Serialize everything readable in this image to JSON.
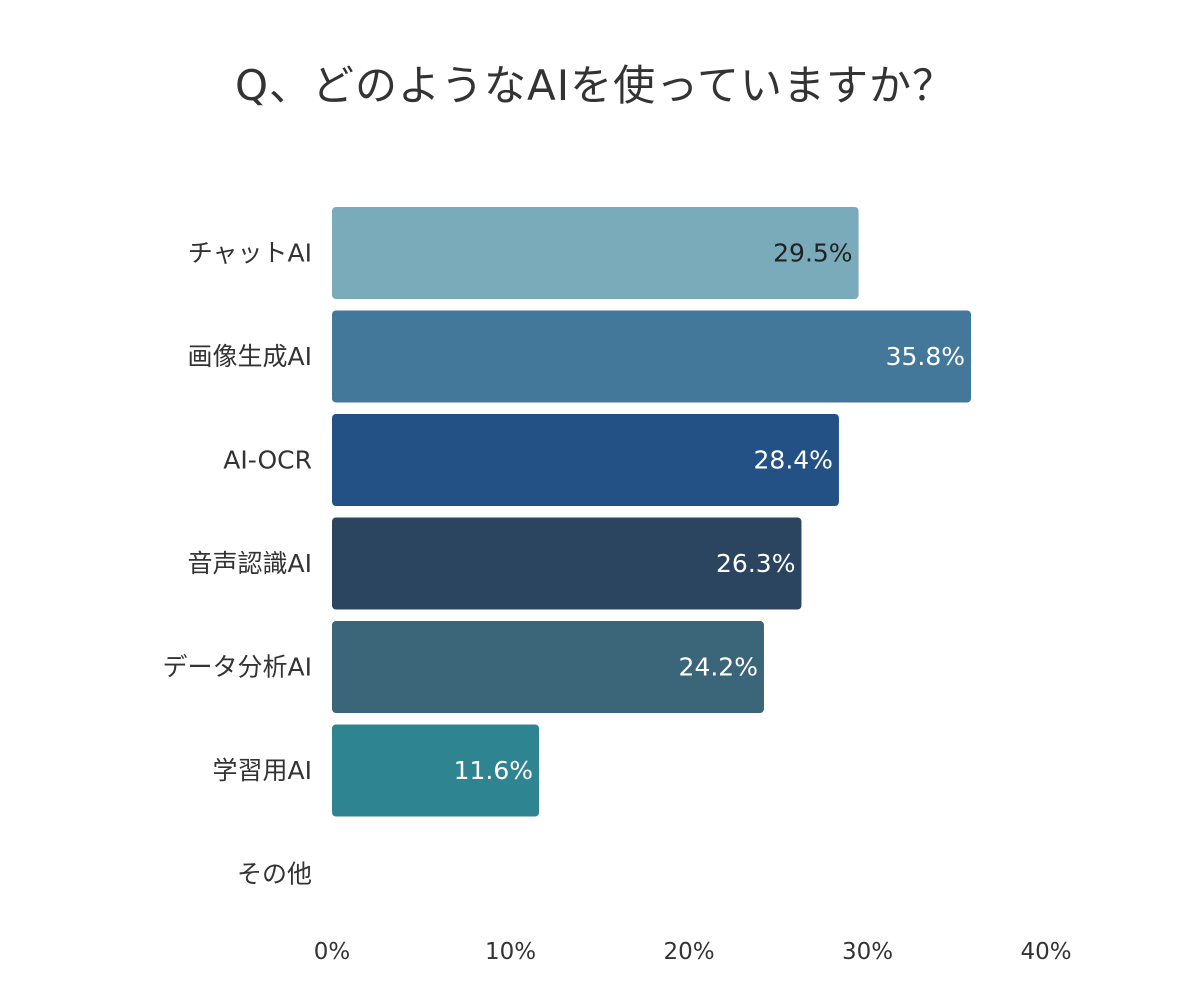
{
  "chart_data": {
    "type": "bar",
    "orientation": "horizontal",
    "title": "Q、どのようなAIを使っていますか？",
    "xlabel": "",
    "ylabel": "",
    "categories": [
      "チャットAI",
      "画像生成AI",
      "AI-OCR",
      "音声認識AI",
      "データ分析AI",
      "学習用AI",
      "その他"
    ],
    "values": [
      29.5,
      35.8,
      28.4,
      26.3,
      24.2,
      11.6,
      null
    ],
    "value_labels": [
      "29.5%",
      "35.8%",
      "28.4%",
      "26.3%",
      "24.2%",
      "11.6%",
      ""
    ],
    "colors": [
      "#7aabba",
      "#44789a",
      "#235185",
      "#2b4560",
      "#3b6679",
      "#2f8492",
      "#cccccc"
    ],
    "label_colors": [
      "#222222",
      "#ffffff",
      "#ffffff",
      "#ffffff",
      "#ffffff",
      "#ffffff",
      "#ffffff"
    ],
    "xlim": [
      0,
      40
    ],
    "x_ticks": [
      0,
      10,
      20,
      30,
      40
    ],
    "x_tick_labels": [
      "0%",
      "10%",
      "20%",
      "30%",
      "40%"
    ],
    "grid": false,
    "legend": "none"
  }
}
